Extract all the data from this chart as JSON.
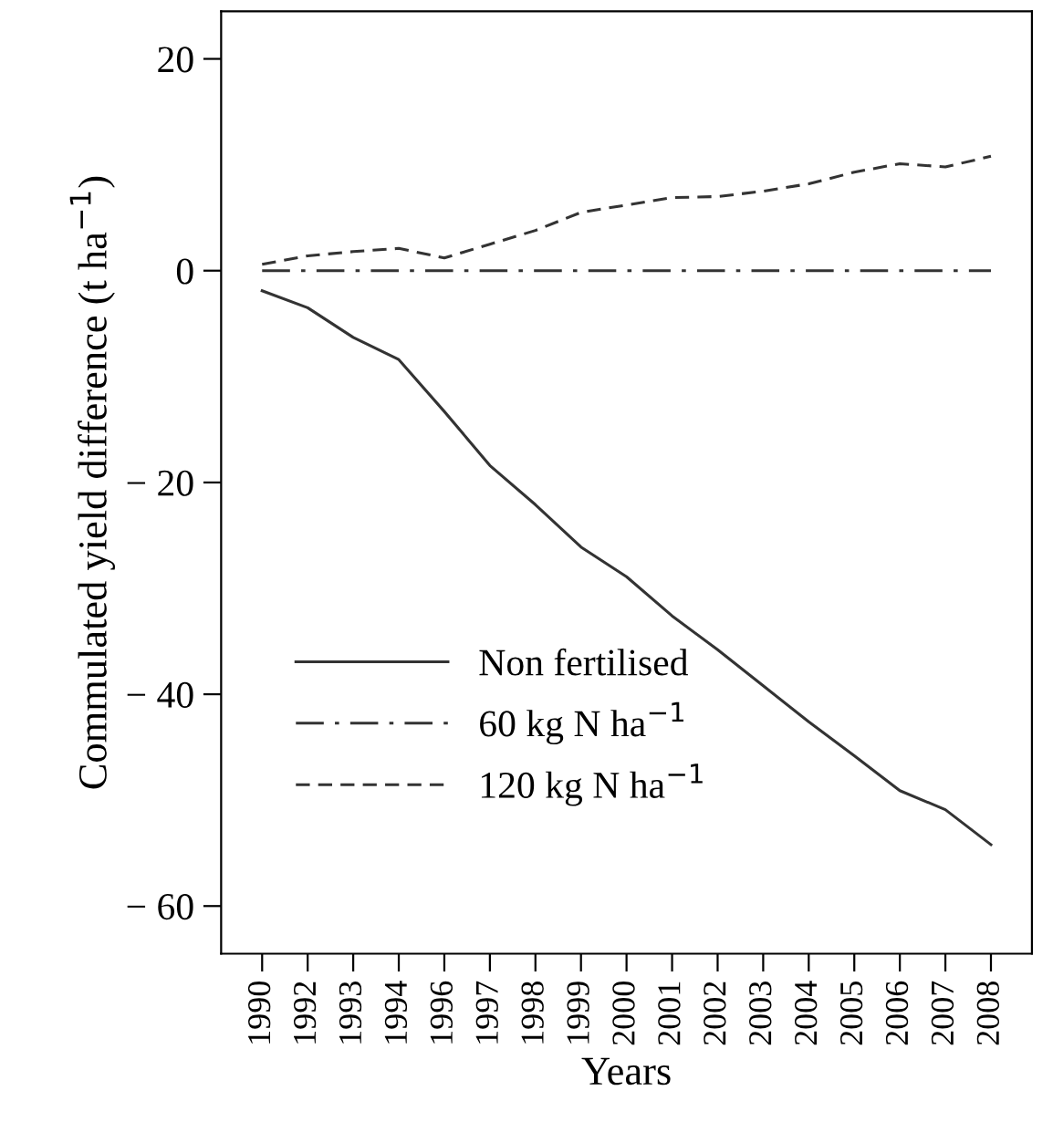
{
  "chart_data": {
    "type": "line",
    "xlabel": "Years",
    "ylabel": "Commulated yield difference (t ha$^{−1}$)",
    "categories": [
      "1990",
      "1992",
      "1993",
      "1994",
      "1996",
      "1997",
      "1998",
      "1999",
      "2000",
      "2001",
      "2002",
      "2003",
      "2004",
      "2005",
      "2006",
      "2007",
      "2008"
    ],
    "series": [
      {
        "name": "Non fertilised",
        "color": "#333333",
        "line_style": "solid",
        "values": [
          -1.9,
          -3.5,
          -6.3,
          -8.4,
          -13.3,
          -18.4,
          -22.1,
          -26.1,
          -28.9,
          -32.6,
          -35.8,
          -39.2,
          -42.6,
          -45.8,
          -49.1,
          -50.9,
          -54.2
        ]
      },
      {
        "name": "60 kg N ha$^{−1}$",
        "color": "#333333",
        "line_style": "dashdot",
        "values": [
          0,
          0,
          0,
          0,
          0,
          0,
          0,
          0,
          0,
          0,
          0,
          0,
          0,
          0,
          0,
          0,
          0
        ]
      },
      {
        "name": "120 kg N ha$^{−1}$",
        "color": "#333333",
        "line_style": "dashed",
        "values": [
          0.6,
          1.4,
          1.8,
          2.1,
          1.2,
          2.5,
          3.8,
          5.5,
          6.2,
          6.9,
          7.0,
          7.5,
          8.2,
          9.3,
          10.1,
          9.8,
          10.8
        ]
      }
    ],
    "ylim": [
      -64.5,
      24.5
    ],
    "yticks": [
      20,
      0,
      {
        "value": -20,
        "label": "− 20"
      },
      {
        "value": -40,
        "label": "− 40"
      },
      {
        "value": -60,
        "label": "− 60"
      }
    ],
    "grid": false,
    "legend": "bottom left",
    "marker": "none"
  }
}
